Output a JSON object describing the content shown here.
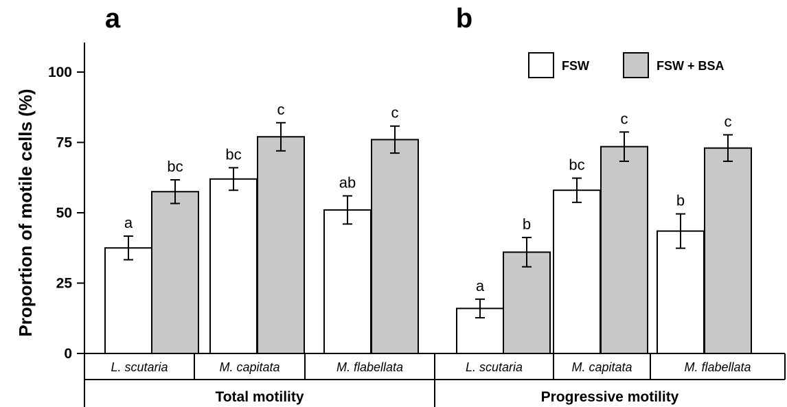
{
  "chart_data": {
    "type": "bar",
    "ylabel": "Proportion of motile cells (%)",
    "ylim": [
      0,
      110
    ],
    "yticks": [
      "0",
      "25",
      "50",
      "75",
      "100"
    ],
    "legend": {
      "position": "top-right",
      "entries": [
        {
          "label": "FSW",
          "color": "#ffffff"
        },
        {
          "label": "FSW + BSA",
          "color": "#c8c8c8"
        }
      ]
    },
    "panels": [
      {
        "label": "a",
        "group_label": "Total motility",
        "categories": [
          "L. scutaria",
          "M. capitata",
          "M. flabellata"
        ],
        "series": [
          {
            "name": "FSW",
            "values": [
              37.5,
              62,
              51
            ],
            "errors": [
              4.2,
              4,
              5
            ],
            "letters": [
              "a",
              "bc",
              "ab"
            ]
          },
          {
            "name": "FSW + BSA",
            "values": [
              57.5,
              77,
              76
            ],
            "errors": [
              4.2,
              5,
              4.8
            ],
            "letters": [
              "bc",
              "c",
              "c"
            ]
          }
        ]
      },
      {
        "label": "b",
        "group_label": "Progressive motility",
        "categories": [
          "L. scutaria",
          "M. capitata",
          "M. flabellata"
        ],
        "series": [
          {
            "name": "FSW",
            "values": [
              16,
              58,
              43.5
            ],
            "errors": [
              3.3,
              4.3,
              6.1
            ],
            "letters": [
              "a",
              "bc",
              "b"
            ]
          },
          {
            "name": "FSW + BSA",
            "values": [
              36,
              73.5,
              73
            ],
            "errors": [
              5.2,
              5.2,
              4.7
            ],
            "letters": [
              "b",
              "c",
              "c"
            ]
          }
        ]
      }
    ]
  }
}
